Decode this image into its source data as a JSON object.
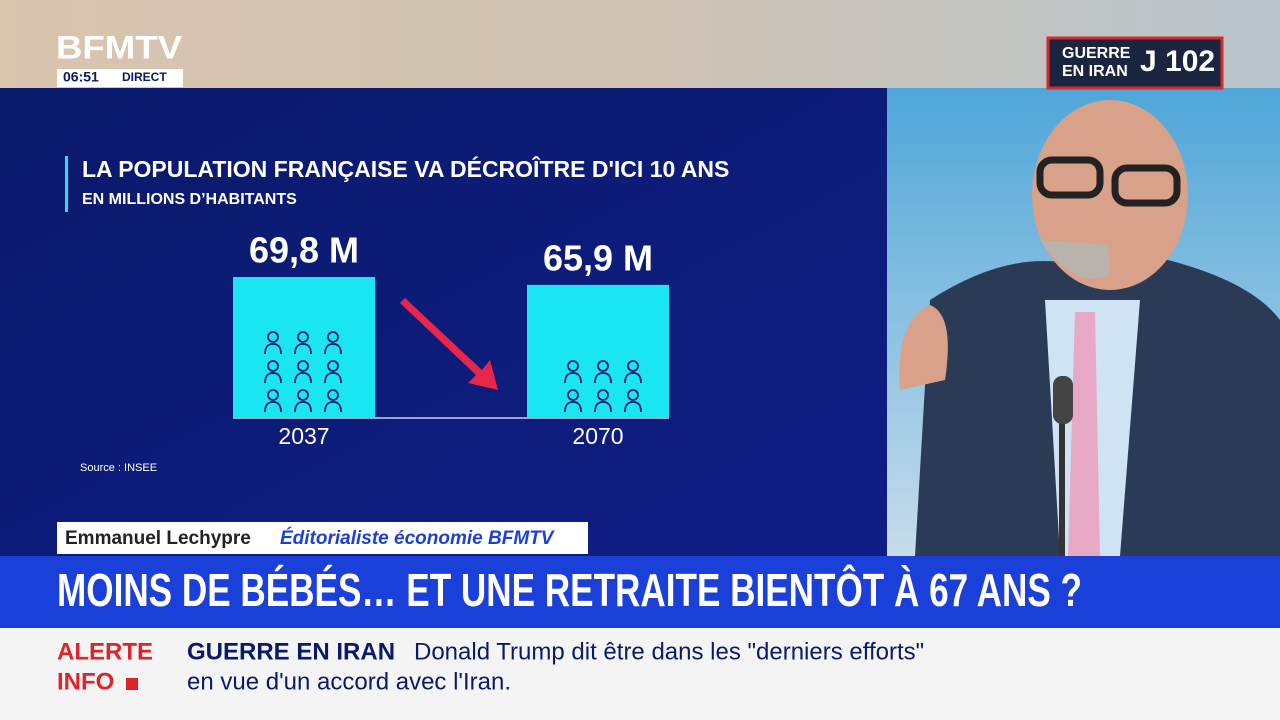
{
  "header": {
    "logo": "BFMTV",
    "time": "06:51",
    "live": "DIRECT",
    "badge_top": "GUERRE",
    "badge_bottom": "EN IRAN",
    "badge_day": "J 102"
  },
  "chart_data": {
    "type": "bar",
    "title": "LA POPULATION FRANÇAISE VA DÉCROÎTRE D'ICI 10 ANS",
    "subtitle": "EN MILLIONS D’HABITANTS",
    "categories": [
      "2037",
      "2070"
    ],
    "values": [
      69.8,
      65.9
    ],
    "value_labels": [
      "69,8 M",
      "65,9 M"
    ],
    "color": "#19e6f2",
    "source": "Source : INSEE"
  },
  "lower_third": {
    "name": "Emmanuel Lechypre",
    "role": "Éditorialiste économie BFMTV",
    "headline": "MOINS DE BÉBÉS… ET UNE RETRAITE BIENTÔT À 67 ANS ?"
  },
  "ticker": {
    "label_1": "ALERTE",
    "label_2": "INFO",
    "topic": "GUERRE EN IRAN",
    "text_1": "Donald Trump dit être dans les \"derniers efforts\"",
    "text_2": "en vue d'un accord avec l'Iran."
  }
}
